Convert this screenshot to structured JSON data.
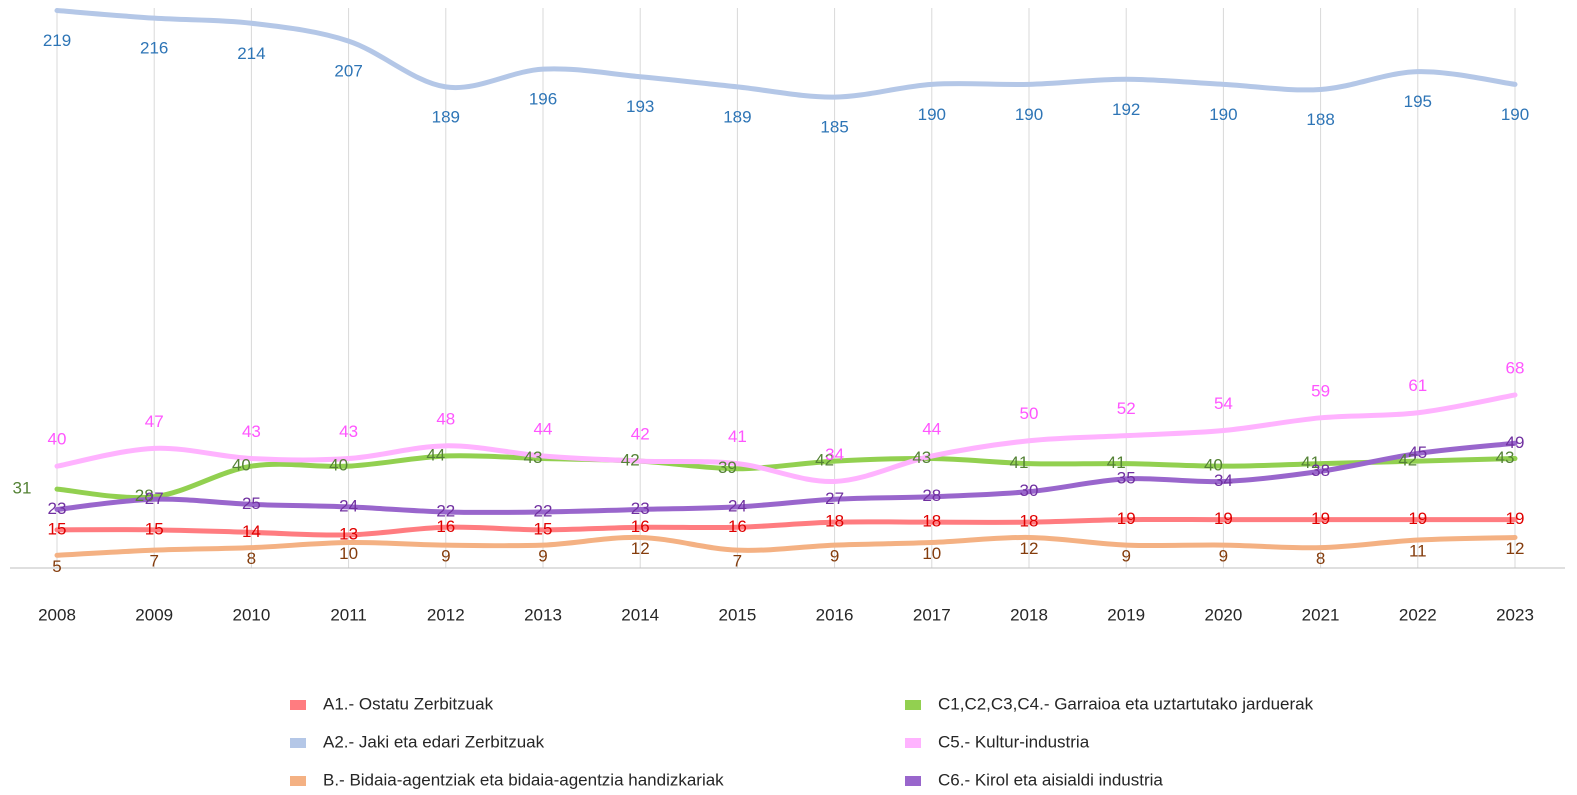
{
  "chart_data": {
    "type": "line",
    "categories": [
      "2008",
      "2009",
      "2010",
      "2011",
      "2012",
      "2013",
      "2014",
      "2015",
      "2016",
      "2017",
      "2018",
      "2019",
      "2020",
      "2021",
      "2022",
      "2023"
    ],
    "ylim": [
      0,
      220
    ],
    "xgrid": true,
    "smooth": true,
    "series": [
      {
        "name": "A1.-  Ostatu Zerbitzuak",
        "color": "#ff7c80",
        "label_color": "#e00000",
        "values": [
          15,
          15,
          14,
          13,
          16,
          15,
          16,
          16,
          18,
          18,
          18,
          19,
          19,
          19,
          19,
          19
        ]
      },
      {
        "name": "A2.- Jaki eta edari Zerbitzuak",
        "color": "#b4c7e7",
        "label_color": "#2e75b6",
        "values": [
          219,
          216,
          214,
          207,
          189,
          196,
          193,
          189,
          185,
          190,
          190,
          192,
          190,
          188,
          195,
          190
        ]
      },
      {
        "name": "B.- Bidaia-agentziak eta bidaia-agentzia handizkariak",
        "color": "#f4b183",
        "label_color": "#843c0c",
        "values": [
          5,
          7,
          8,
          10,
          9,
          9,
          12,
          7,
          9,
          10,
          12,
          9,
          9,
          8,
          11,
          12
        ]
      },
      {
        "name": "C1,C2,C3,C4.- Garraioa eta uztartutako jarduerak",
        "color": "#92d050",
        "label_color": "#548235",
        "values": [
          31,
          28,
          40,
          40,
          44,
          43,
          42,
          39,
          42,
          43,
          41,
          41,
          40,
          41,
          42,
          43
        ]
      },
      {
        "name": "C5.- Kultur-industria",
        "color": "#ffb3ff",
        "label_color": "#ff55ff",
        "values": [
          40,
          47,
          43,
          43,
          48,
          44,
          42,
          41,
          34,
          44,
          50,
          52,
          54,
          59,
          61,
          68
        ]
      },
      {
        "name": "C6.- Kirol eta aisialdi industria",
        "color": "#9966cc",
        "label_color": "#7030a0",
        "values": [
          23,
          27,
          25,
          24,
          22,
          22,
          23,
          24,
          27,
          28,
          30,
          35,
          34,
          38,
          45,
          49
        ]
      }
    ]
  }
}
